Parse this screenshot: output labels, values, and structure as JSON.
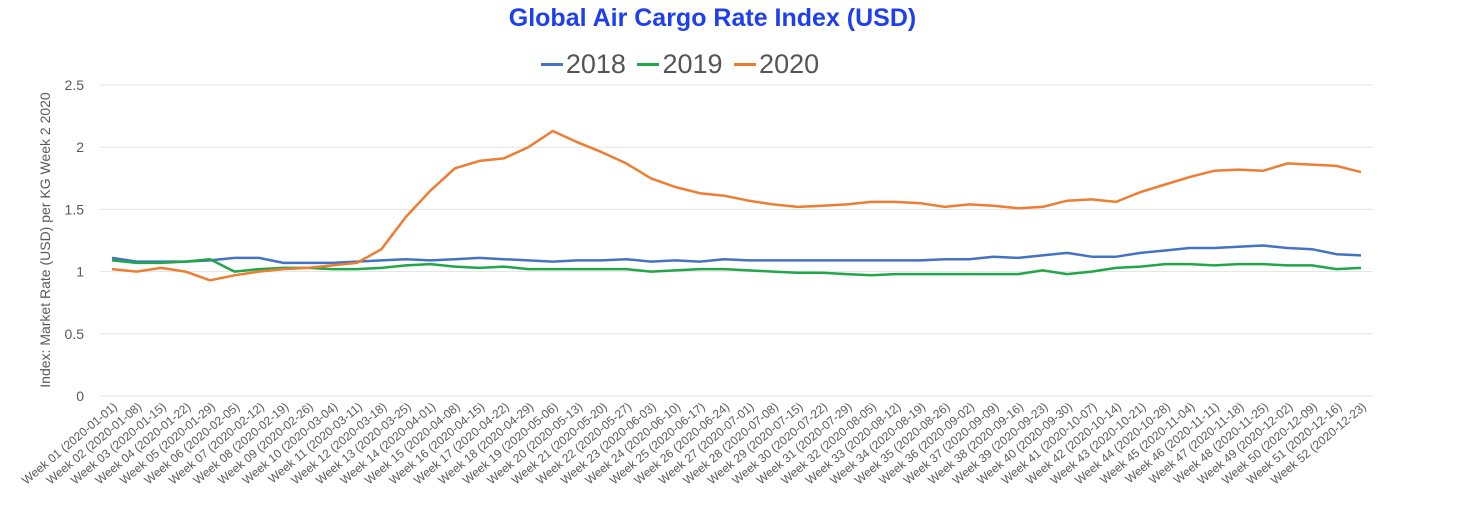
{
  "chart_data": {
    "type": "line",
    "title": "Global Air Cargo Rate Index (USD)",
    "xlabel": "",
    "ylabel": "Index: Market Rate (USD) per KG Week 2 2020",
    "ylim": [
      0,
      2.5
    ],
    "yticks": [
      0,
      0.5,
      1,
      1.5,
      2,
      2.5
    ],
    "ytick_labels": [
      "0",
      "0.5",
      "1",
      "1.5",
      "2",
      "2.5"
    ],
    "grid": true,
    "legend_position": "top-center",
    "categories": [
      "Week 01 (2020-01-01)",
      "Week 02 (2020-01-08)",
      "Week 03 (2020-01-15)",
      "Week 04 (2020-01-22)",
      "Week 05 (2020-01-29)",
      "Week 06 (2020-02-05)",
      "Week 07 (2020-02-12)",
      "Week 08 (2020-02-19)",
      "Week 09 (2020-02-26)",
      "Week 10 (2020-03-04)",
      "Week 11 (2020-03-11)",
      "Week 12 (2020-03-18)",
      "Week 13 (2020-03-25)",
      "Week 14 (2020-04-01)",
      "Week 15 (2020-04-08)",
      "Week 16 (2020-04-15)",
      "Week 17 (2020-04-22)",
      "Week 18 (2020-04-29)",
      "Week 19 (2020-05-06)",
      "Week 20 (2020-05-13)",
      "Week 21 (2020-05-20)",
      "Week 22 (2020-05-27)",
      "Week 23 (2020-06-03)",
      "Week 24 (2020-06-10)",
      "Week 25 (2020-06-17)",
      "Week 26 (2020-06-24)",
      "Week 27 (2020-07-01)",
      "Week 28 (2020-07-08)",
      "Week 29 (2020-07-15)",
      "Week 30 (2020-07-22)",
      "Week 31 (2020-07-29)",
      "Week 32 (2020-08-05)",
      "Week 33 (2020-08-12)",
      "Week 34 (2020-08-19)",
      "Week 35 (2020-08-26)",
      "Week 36 (2020-09-02)",
      "Week 37 (2020-09-09)",
      "Week 38 (2020-09-16)",
      "Week 39 (2020-09-23)",
      "Week 40 (2020-09-30)",
      "Week 41 (2020-10-07)",
      "Week 42 (2020-10-14)",
      "Week 43 (2020-10-21)",
      "Week 44 (2020-10-28)",
      "Week 45 (2020-11-04)",
      "Week 46 (2020-11-11)",
      "Week 47 (2020-11-18)",
      "Week 48 (2020-11-25)",
      "Week 49 (2020-12-02)",
      "Week 50 (2020-12-09)",
      "Week 51 (2020-12-16)",
      "Week 52 (2020-12-23)"
    ],
    "series": [
      {
        "name": "2018",
        "color": "#4472c4",
        "values": [
          1.11,
          1.08,
          1.08,
          1.08,
          1.09,
          1.11,
          1.11,
          1.07,
          1.07,
          1.07,
          1.08,
          1.09,
          1.1,
          1.09,
          1.1,
          1.11,
          1.1,
          1.09,
          1.08,
          1.09,
          1.09,
          1.1,
          1.08,
          1.09,
          1.08,
          1.1,
          1.09,
          1.09,
          1.09,
          1.09,
          1.09,
          1.09,
          1.09,
          1.09,
          1.1,
          1.1,
          1.12,
          1.11,
          1.13,
          1.15,
          1.12,
          1.12,
          1.15,
          1.17,
          1.19,
          1.19,
          1.2,
          1.21,
          1.19,
          1.18,
          1.14,
          1.13
        ]
      },
      {
        "name": "2019",
        "color": "#21a64a",
        "values": [
          1.09,
          1.07,
          1.07,
          1.08,
          1.1,
          1.0,
          1.02,
          1.03,
          1.03,
          1.02,
          1.02,
          1.03,
          1.05,
          1.06,
          1.04,
          1.03,
          1.04,
          1.02,
          1.02,
          1.02,
          1.02,
          1.02,
          1.0,
          1.01,
          1.02,
          1.02,
          1.01,
          1.0,
          0.99,
          0.99,
          0.98,
          0.97,
          0.98,
          0.98,
          0.98,
          0.98,
          0.98,
          0.98,
          1.01,
          0.98,
          1.0,
          1.03,
          1.04,
          1.06,
          1.06,
          1.05,
          1.06,
          1.06,
          1.05,
          1.05,
          1.02,
          1.03
        ]
      },
      {
        "name": "2020",
        "color": "#ed7d31",
        "values": [
          1.02,
          1.0,
          1.03,
          1.0,
          0.93,
          0.97,
          1.0,
          1.02,
          1.03,
          1.05,
          1.07,
          1.18,
          1.44,
          1.65,
          1.83,
          1.89,
          1.91,
          2.0,
          2.13,
          2.04,
          1.96,
          1.87,
          1.75,
          1.68,
          1.63,
          1.61,
          1.57,
          1.54,
          1.52,
          1.53,
          1.54,
          1.56,
          1.56,
          1.55,
          1.52,
          1.54,
          1.53,
          1.51,
          1.52,
          1.57,
          1.58,
          1.56,
          1.64,
          1.7,
          1.76,
          1.81,
          1.82,
          1.81,
          1.87,
          1.86,
          1.85,
          1.8
        ]
      }
    ]
  }
}
